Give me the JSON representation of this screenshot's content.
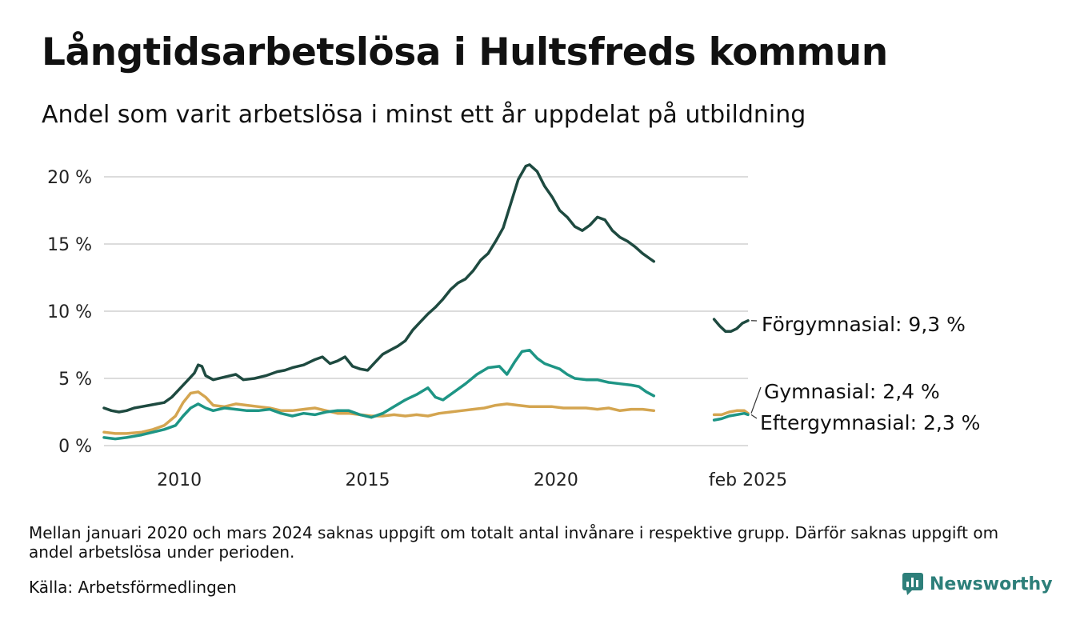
{
  "page": {
    "title": "Långtidsarbetslösa i Hultsfreds kommun",
    "subtitle": "Andel som varit arbetslösa i minst ett år uppdelat på utbildning",
    "footnote": "Mellan januari 2020 och mars 2024 saknas uppgift om totalt antal invånare i respektive grupp. Därför saknas uppgift om andel arbetslösa under perioden.",
    "source": "Källa: Arbetsförmedlingen",
    "logo_text": "Newsworthy"
  },
  "chart_data": {
    "type": "line",
    "title": "Långtidsarbetslösa i Hultsfreds kommun",
    "subtitle": "Andel som varit arbetslösa i minst ett år uppdelat på utbildning",
    "xlabel": "",
    "ylabel": "",
    "ylim": [
      0,
      21
    ],
    "xlim": [
      2008.0,
      2025.1
    ],
    "yticks": [
      0,
      5,
      10,
      15,
      20
    ],
    "ytick_labels": [
      "0 %",
      "5 %",
      "10 %",
      "15 %",
      "20 %"
    ],
    "xticks": [
      2010,
      2015,
      2020,
      2025.1
    ],
    "xtick_labels": [
      "2010",
      "2015",
      "2020",
      "feb 2025"
    ],
    "grid": true,
    "series": [
      {
        "name": "Förgymnasial",
        "end_label": "Förgymnasial: 9,3 %",
        "color": "#1e4a40",
        "segments": [
          [
            [
              2008.0,
              2.8
            ],
            [
              2008.2,
              2.6
            ],
            [
              2008.4,
              2.5
            ],
            [
              2008.6,
              2.6
            ],
            [
              2008.8,
              2.8
            ],
            [
              2009.0,
              2.9
            ],
            [
              2009.2,
              3.0
            ],
            [
              2009.4,
              3.1
            ],
            [
              2009.6,
              3.2
            ],
            [
              2009.8,
              3.6
            ],
            [
              2010.0,
              4.2
            ],
            [
              2010.2,
              4.8
            ],
            [
              2010.4,
              5.4
            ],
            [
              2010.5,
              6.0
            ],
            [
              2010.6,
              5.9
            ],
            [
              2010.7,
              5.2
            ],
            [
              2010.9,
              4.9
            ],
            [
              2011.2,
              5.1
            ],
            [
              2011.5,
              5.3
            ],
            [
              2011.7,
              4.9
            ],
            [
              2012.0,
              5.0
            ],
            [
              2012.3,
              5.2
            ],
            [
              2012.6,
              5.5
            ],
            [
              2012.8,
              5.6
            ],
            [
              2013.0,
              5.8
            ],
            [
              2013.3,
              6.0
            ],
            [
              2013.6,
              6.4
            ],
            [
              2013.8,
              6.6
            ],
            [
              2014.0,
              6.1
            ],
            [
              2014.2,
              6.3
            ],
            [
              2014.4,
              6.6
            ],
            [
              2014.6,
              5.9
            ],
            [
              2014.8,
              5.7
            ],
            [
              2015.0,
              5.6
            ],
            [
              2015.2,
              6.2
            ],
            [
              2015.4,
              6.8
            ],
            [
              2015.6,
              7.1
            ],
            [
              2015.8,
              7.4
            ],
            [
              2016.0,
              7.8
            ],
            [
              2016.2,
              8.6
            ],
            [
              2016.4,
              9.2
            ],
            [
              2016.6,
              9.8
            ],
            [
              2016.8,
              10.3
            ],
            [
              2017.0,
              10.9
            ],
            [
              2017.2,
              11.6
            ],
            [
              2017.4,
              12.1
            ],
            [
              2017.6,
              12.4
            ],
            [
              2017.8,
              13.0
            ],
            [
              2018.0,
              13.8
            ],
            [
              2018.2,
              14.3
            ],
            [
              2018.4,
              15.2
            ],
            [
              2018.6,
              16.2
            ],
            [
              2018.8,
              18.0
            ],
            [
              2019.0,
              19.8
            ],
            [
              2019.2,
              20.8
            ],
            [
              2019.3,
              20.9
            ],
            [
              2019.5,
              20.4
            ],
            [
              2019.7,
              19.3
            ],
            [
              2019.9,
              18.5
            ],
            [
              2020.1,
              17.5
            ],
            [
              2020.3,
              17.0
            ],
            [
              2020.5,
              16.3
            ],
            [
              2020.7,
              16.0
            ],
            [
              2020.9,
              16.4
            ],
            [
              2021.1,
              17.0
            ],
            [
              2021.3,
              16.8
            ],
            [
              2021.5,
              16.0
            ],
            [
              2021.7,
              15.5
            ],
            [
              2021.9,
              15.2
            ],
            [
              2022.1,
              14.8
            ],
            [
              2022.3,
              14.3
            ],
            [
              2022.5,
              13.9
            ],
            [
              2022.6,
              13.7
            ]
          ],
          [
            [
              2024.2,
              9.4
            ],
            [
              2024.35,
              8.9
            ],
            [
              2024.5,
              8.5
            ],
            [
              2024.65,
              8.5
            ],
            [
              2024.8,
              8.7
            ],
            [
              2024.95,
              9.1
            ],
            [
              2025.1,
              9.3
            ]
          ]
        ]
      },
      {
        "name": "Gymnasial",
        "end_label": "Gymnasial: 2,4 %",
        "color": "#d4a550",
        "segments": [
          [
            [
              2008.0,
              1.0
            ],
            [
              2008.3,
              0.9
            ],
            [
              2008.6,
              0.9
            ],
            [
              2009.0,
              1.0
            ],
            [
              2009.3,
              1.2
            ],
            [
              2009.6,
              1.5
            ],
            [
              2009.9,
              2.2
            ],
            [
              2010.1,
              3.2
            ],
            [
              2010.3,
              3.9
            ],
            [
              2010.5,
              4.0
            ],
            [
              2010.7,
              3.6
            ],
            [
              2010.9,
              3.0
            ],
            [
              2011.2,
              2.9
            ],
            [
              2011.5,
              3.1
            ],
            [
              2011.8,
              3.0
            ],
            [
              2012.1,
              2.9
            ],
            [
              2012.4,
              2.8
            ],
            [
              2012.7,
              2.6
            ],
            [
              2013.0,
              2.6
            ],
            [
              2013.3,
              2.7
            ],
            [
              2013.6,
              2.8
            ],
            [
              2013.9,
              2.6
            ],
            [
              2014.2,
              2.4
            ],
            [
              2014.5,
              2.4
            ],
            [
              2014.8,
              2.3
            ],
            [
              2015.1,
              2.2
            ],
            [
              2015.4,
              2.2
            ],
            [
              2015.7,
              2.3
            ],
            [
              2016.0,
              2.2
            ],
            [
              2016.3,
              2.3
            ],
            [
              2016.6,
              2.2
            ],
            [
              2016.9,
              2.4
            ],
            [
              2017.2,
              2.5
            ],
            [
              2017.5,
              2.6
            ],
            [
              2017.8,
              2.7
            ],
            [
              2018.1,
              2.8
            ],
            [
              2018.4,
              3.0
            ],
            [
              2018.7,
              3.1
            ],
            [
              2019.0,
              3.0
            ],
            [
              2019.3,
              2.9
            ],
            [
              2019.6,
              2.9
            ],
            [
              2019.9,
              2.9
            ],
            [
              2020.2,
              2.8
            ],
            [
              2020.5,
              2.8
            ],
            [
              2020.8,
              2.8
            ],
            [
              2021.1,
              2.7
            ],
            [
              2021.4,
              2.8
            ],
            [
              2021.7,
              2.6
            ],
            [
              2022.0,
              2.7
            ],
            [
              2022.3,
              2.7
            ],
            [
              2022.6,
              2.6
            ]
          ],
          [
            [
              2024.2,
              2.3
            ],
            [
              2024.4,
              2.3
            ],
            [
              2024.6,
              2.5
            ],
            [
              2024.8,
              2.6
            ],
            [
              2025.0,
              2.6
            ],
            [
              2025.1,
              2.4
            ]
          ]
        ]
      },
      {
        "name": "Eftergymnasial",
        "end_label": "Eftergymnasial: 2,3 %",
        "color": "#1e9585",
        "segments": [
          [
            [
              2008.0,
              0.6
            ],
            [
              2008.3,
              0.5
            ],
            [
              2008.6,
              0.6
            ],
            [
              2009.0,
              0.8
            ],
            [
              2009.3,
              1.0
            ],
            [
              2009.6,
              1.2
            ],
            [
              2009.9,
              1.5
            ],
            [
              2010.1,
              2.2
            ],
            [
              2010.3,
              2.8
            ],
            [
              2010.5,
              3.1
            ],
            [
              2010.7,
              2.8
            ],
            [
              2010.9,
              2.6
            ],
            [
              2011.2,
              2.8
            ],
            [
              2011.5,
              2.7
            ],
            [
              2011.8,
              2.6
            ],
            [
              2012.1,
              2.6
            ],
            [
              2012.4,
              2.7
            ],
            [
              2012.7,
              2.4
            ],
            [
              2013.0,
              2.2
            ],
            [
              2013.3,
              2.4
            ],
            [
              2013.6,
              2.3
            ],
            [
              2013.9,
              2.5
            ],
            [
              2014.2,
              2.6
            ],
            [
              2014.5,
              2.6
            ],
            [
              2014.8,
              2.3
            ],
            [
              2015.1,
              2.1
            ],
            [
              2015.4,
              2.4
            ],
            [
              2015.7,
              2.9
            ],
            [
              2016.0,
              3.4
            ],
            [
              2016.3,
              3.8
            ],
            [
              2016.6,
              4.3
            ],
            [
              2016.8,
              3.6
            ],
            [
              2017.0,
              3.4
            ],
            [
              2017.3,
              4.0
            ],
            [
              2017.6,
              4.6
            ],
            [
              2017.9,
              5.3
            ],
            [
              2018.2,
              5.8
            ],
            [
              2018.5,
              5.9
            ],
            [
              2018.7,
              5.3
            ],
            [
              2018.9,
              6.2
            ],
            [
              2019.1,
              7.0
            ],
            [
              2019.3,
              7.1
            ],
            [
              2019.5,
              6.5
            ],
            [
              2019.7,
              6.1
            ],
            [
              2019.9,
              5.9
            ],
            [
              2020.1,
              5.7
            ],
            [
              2020.3,
              5.3
            ],
            [
              2020.5,
              5.0
            ],
            [
              2020.8,
              4.9
            ],
            [
              2021.1,
              4.9
            ],
            [
              2021.4,
              4.7
            ],
            [
              2021.7,
              4.6
            ],
            [
              2022.0,
              4.5
            ],
            [
              2022.2,
              4.4
            ],
            [
              2022.4,
              4.0
            ],
            [
              2022.6,
              3.7
            ]
          ],
          [
            [
              2024.2,
              1.9
            ],
            [
              2024.4,
              2.0
            ],
            [
              2024.6,
              2.2
            ],
            [
              2024.8,
              2.3
            ],
            [
              2025.0,
              2.4
            ],
            [
              2025.1,
              2.3
            ]
          ]
        ]
      }
    ]
  }
}
